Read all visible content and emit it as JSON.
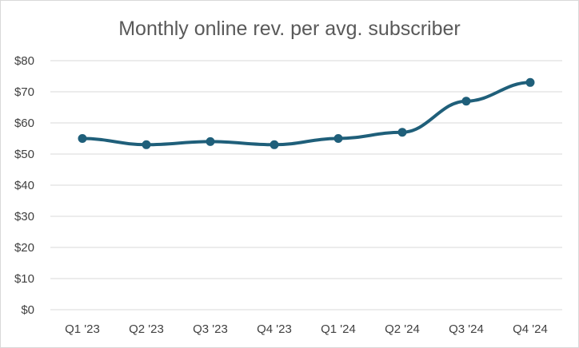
{
  "chart_data": {
    "type": "line",
    "title": "Monthly online rev. per avg. subscriber",
    "xlabel": "",
    "ylabel": "",
    "categories": [
      "Q1 '23",
      "Q2 '23",
      "Q3 '23",
      "Q4 '23",
      "Q1 '24",
      "Q2 '24",
      "Q3 '24",
      "Q4 '24"
    ],
    "series": [
      {
        "name": "Monthly online rev. per avg. subscriber",
        "values": [
          55,
          53,
          54,
          53,
          55,
          57,
          67,
          73
        ],
        "color": "#1f5f7a"
      }
    ],
    "ylim": [
      0,
      80
    ],
    "yticks": [
      0,
      10,
      20,
      30,
      40,
      50,
      60,
      70,
      80
    ],
    "ytick_labels": [
      "$0",
      "$10",
      "$20",
      "$30",
      "$40",
      "$50",
      "$60",
      "$70",
      "$80"
    ],
    "grid": true,
    "legend": "none",
    "markers": true
  }
}
